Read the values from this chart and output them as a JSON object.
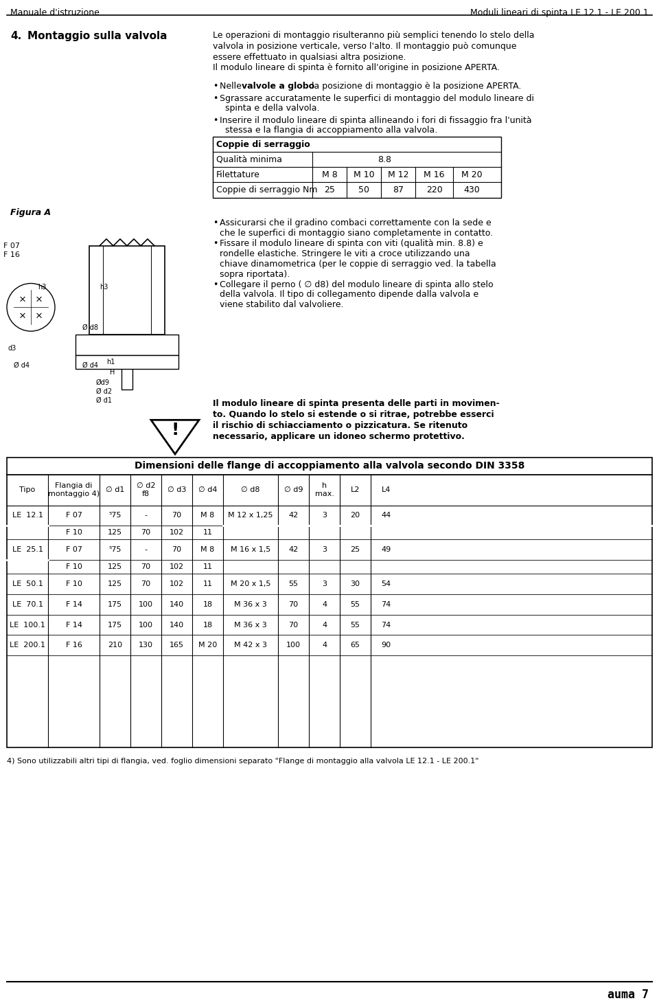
{
  "header_left": "Manuale d'istruzione",
  "header_right": "Moduli lineari di spinta LE 12.1 - LE 200.1",
  "section_num": "4.",
  "section_title": "Montaggio sulla valvola",
  "section_text": [
    "Le operazioni di montaggio risulteranno più semplici tenendo lo stelo della",
    "valvola in posizione verticale, verso l'alto. Il montaggio può comunque",
    "essere effettuato in qualsiasi altra posizione.",
    "Il modulo lineare di spinta è fornito all'origine in posizione APERTA."
  ],
  "bullet_points": [
    "Nelle valvole a globo la posizione di montaggio è la posizione APERTA.",
    "Sgrassare accuratamente le superfici di montaggio del modulo lineare di\n    spinta e della valvola.",
    "Inserire il modulo lineare di spinta allineando i fori di fissaggio fra l'unità\n    stessa e la flangia di accoppiamento alla valvola."
  ],
  "table1_title": "Coppie di serraggio",
  "table1_rows": [
    [
      "Qualità minima",
      "8.8",
      "",
      "",
      "",
      ""
    ],
    [
      "Filettature",
      "M 8",
      "M 10",
      "M 12",
      "M 16",
      "M 20"
    ],
    [
      "Coppie di serraggio Nm",
      "25",
      "50",
      "87",
      "220",
      "430"
    ]
  ],
  "figura_label": "Figura A",
  "bullet_points2": [
    "Assicurarsi che il gradino combaci correttamente con la sede e\n    che le superfici di montaggio siano completamente in contatto.",
    "Fissare il modulo lineare di spinta con viti (qualità min. 8.8) e\n    rondelle elastiche. Stringere le viti a croce utilizzando una\n    chiave dinamometrica (per le coppie di serraggio ved. la tabella\n    sopra riportata).",
    "Collegare il perno ( ∅ d8) del modulo lineare di spinta allo stelo\n    della valvola. Il tipo di collegamento dipende dalla valvola e\n    viene stabilito dal valvoliere."
  ],
  "warning_text": [
    "Il modulo lineare di spinta presenta delle parti in movimen-",
    "to. Quando lo stelo si estende o si ritrae, potrebbe esserci",
    "il rischio di schiacciamento o pizzicatura. Se ritenuto",
    "necessario, applicare un idoneo schermo protettivo."
  ],
  "table2_title": "Dimensioni delle flange di accoppiamento alla valvola secondo DIN 3358",
  "table2_headers": [
    "Tipo",
    "Flangia di\nmontaggio 4)",
    "∅ d1",
    "∅ d2\nf8",
    "∅ d3",
    "∅ d4",
    "∅ d8",
    "∅ d9",
    "h\nmax.",
    "L2",
    "L4"
  ],
  "table2_rows": [
    [
      "LE  12.1",
      "F 07",
      "⁵75",
      "-",
      "70",
      "M 8",
      "M 12 x 1,25",
      "42",
      "3",
      "20",
      "44"
    ],
    [
      "",
      "F 10",
      "125",
      "70",
      "102",
      "11",
      "",
      "",
      "",
      "",
      ""
    ],
    [
      "LE  25.1",
      "F 07",
      "⁵75",
      "-",
      "70",
      "M 8",
      "M 16 x 1,5",
      "42",
      "3",
      "25",
      "49"
    ],
    [
      "",
      "F 10",
      "125",
      "70",
      "102",
      "11",
      "",
      "",
      "",
      "",
      ""
    ],
    [
      "LE  50.1",
      "F 10",
      "125",
      "70",
      "102",
      "11",
      "M 20 x 1,5",
      "55",
      "3",
      "30",
      "54"
    ],
    [
      "LE  70.1",
      "F 14",
      "175",
      "100",
      "140",
      "18",
      "M 36 x 3",
      "70",
      "4",
      "55",
      "74"
    ],
    [
      "LE  100.1",
      "F 14",
      "175",
      "100",
      "140",
      "18",
      "M 36 x 3",
      "70",
      "4",
      "55",
      "74"
    ],
    [
      "LE  200.1",
      "F 16",
      "210",
      "130",
      "165",
      "M 20",
      "M 42 x 3",
      "100",
      "4",
      "65",
      "90"
    ]
  ],
  "footnote": "4) Sono utilizzabili altri tipi di flangia, ved. foglio dimensioni separato \"Flange di montaggio alla valvola LE 12.1 - LE 200.1\"",
  "footer_brand": "auma 7",
  "bg_color": "#ffffff",
  "text_color": "#000000",
  "line_color": "#000000"
}
